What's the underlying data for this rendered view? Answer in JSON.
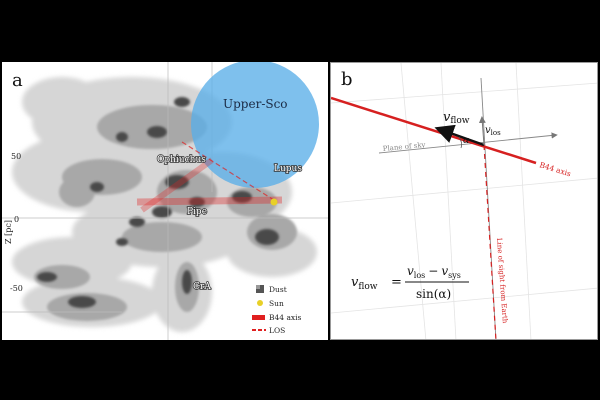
{
  "panel_a": {
    "panel_letter": "a",
    "y_axis_label": "Z [pc]",
    "y_ticks": [
      "50",
      "0",
      "-50"
    ],
    "regions": {
      "upper_sco": "Upper-Sco",
      "ophiuchus": "Ophiuchus",
      "lupus": "Lupus",
      "pipe": "Pipe",
      "cra": "CrA"
    },
    "legend": {
      "dust": "Dust",
      "sun": "Sun",
      "b44_axis": "B44 axis",
      "los": "LOS"
    },
    "colors": {
      "upper_sco_circle": "#5aaee8",
      "sun": "#e8d027",
      "b44_axis": "#e02020"
    }
  },
  "panel_b": {
    "panel_letter": "b",
    "v_flow": "v",
    "v_flow_sub": "flow",
    "v_los": "v",
    "v_los_sub": "los",
    "alpha": "α",
    "plane_of_sky": "Plane of sky",
    "b44_axis": "B44 axis",
    "line_of_sight": "Line of sight from Earth",
    "formula": {
      "lhs": "v",
      "lhs_sub": "flow",
      "equals": "=",
      "numerator_a": "v",
      "numerator_a_sub": "los",
      "minus": "−",
      "numerator_b": "v",
      "numerator_b_sub": "sys",
      "denominator": "sin(α)"
    }
  }
}
